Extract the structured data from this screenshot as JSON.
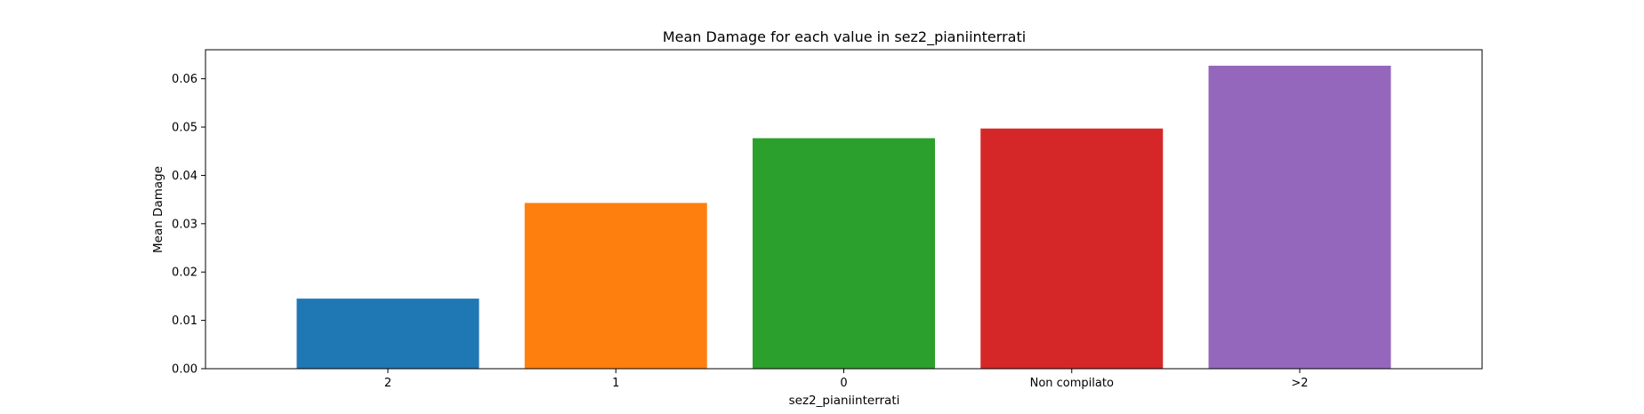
{
  "chart_data": {
    "type": "bar",
    "title": "Mean Damage for each value in sez2_pianiinterrati",
    "xlabel": "sez2_pianiinterrati",
    "ylabel": "Mean Damage",
    "categories": [
      "2",
      "1",
      "0",
      "Non compilato",
      ">2"
    ],
    "values": [
      0.0145,
      0.0343,
      0.0477,
      0.0497,
      0.0627
    ],
    "colors": [
      "#1f77b4",
      "#ff7f0e",
      "#2ca02c",
      "#d62728",
      "#9467bd"
    ],
    "ylim": [
      0,
      0.066
    ],
    "yticks": [
      0.0,
      0.01,
      0.02,
      0.03,
      0.04,
      0.05,
      0.06
    ],
    "ytick_labels": [
      "0.00",
      "0.01",
      "0.02",
      "0.03",
      "0.04",
      "0.05",
      "0.06"
    ],
    "grid": false,
    "legend": "none"
  }
}
